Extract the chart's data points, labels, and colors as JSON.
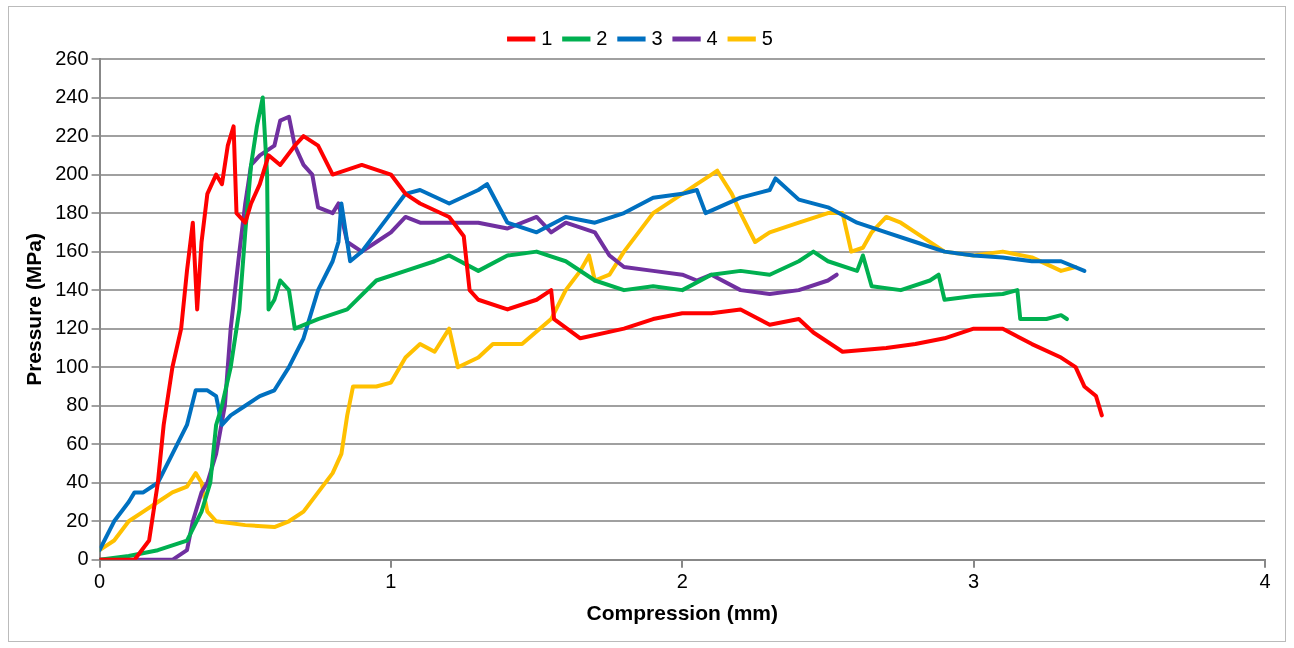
{
  "chart_data": {
    "type": "line",
    "xlabel": "Compression (mm)",
    "ylabel": "Pressure (MPa)",
    "xlim": [
      0,
      4
    ],
    "xticks": [
      0,
      1,
      2,
      3,
      4
    ],
    "ylim": [
      0,
      260
    ],
    "yticks": [
      0,
      20,
      40,
      60,
      80,
      100,
      120,
      140,
      160,
      180,
      200,
      220,
      240,
      260
    ],
    "grid": "y",
    "legend": "top",
    "marker": "none",
    "line_style": "solid",
    "series": [
      {
        "name": "1",
        "color": "#ff0000",
        "x": [
          0,
          0.12,
          0.17,
          0.2,
          0.22,
          0.25,
          0.28,
          0.3,
          0.32,
          0.335,
          0.35,
          0.37,
          0.4,
          0.42,
          0.44,
          0.46,
          0.47,
          0.5,
          0.52,
          0.55,
          0.58,
          0.62,
          0.67,
          0.7,
          0.75,
          0.8,
          0.9,
          1.0,
          1.05,
          1.1,
          1.2,
          1.25,
          1.27,
          1.3,
          1.4,
          1.5,
          1.55,
          1.56,
          1.65,
          1.8,
          1.9,
          2.0,
          2.1,
          2.2,
          2.3,
          2.4,
          2.45,
          2.55,
          2.7,
          2.8,
          2.9,
          3.0,
          3.1,
          3.2,
          3.3,
          3.35,
          3.38,
          3.42,
          3.44
        ],
        "values": [
          0,
          0,
          10,
          40,
          70,
          100,
          120,
          150,
          175,
          130,
          165,
          190,
          200,
          195,
          215,
          225,
          180,
          175,
          185,
          195,
          210,
          205,
          215,
          220,
          215,
          200,
          205,
          200,
          190,
          185,
          178,
          168,
          140,
          135,
          130,
          135,
          140,
          125,
          115,
          120,
          125,
          128,
          128,
          130,
          122,
          125,
          118,
          108,
          110,
          112,
          115,
          120,
          120,
          112,
          105,
          100,
          90,
          85,
          75
        ]
      },
      {
        "name": "2",
        "color": "#00b050",
        "x": [
          0,
          0.1,
          0.2,
          0.3,
          0.35,
          0.38,
          0.4,
          0.42,
          0.45,
          0.48,
          0.5,
          0.52,
          0.54,
          0.56,
          0.575,
          0.58,
          0.6,
          0.62,
          0.65,
          0.67,
          0.75,
          0.85,
          0.95,
          1.05,
          1.15,
          1.2,
          1.3,
          1.4,
          1.5,
          1.6,
          1.7,
          1.8,
          1.9,
          2.0,
          2.1,
          2.2,
          2.3,
          2.4,
          2.45,
          2.5,
          2.6,
          2.62,
          2.65,
          2.75,
          2.85,
          2.88,
          2.9,
          3.0,
          3.1,
          3.15,
          3.16,
          3.25,
          3.3,
          3.32
        ],
        "values": [
          0,
          2,
          5,
          10,
          25,
          40,
          70,
          80,
          100,
          130,
          170,
          205,
          225,
          240,
          200,
          130,
          135,
          145,
          140,
          120,
          125,
          130,
          145,
          150,
          155,
          158,
          150,
          158,
          160,
          155,
          145,
          140,
          142,
          140,
          148,
          150,
          148,
          155,
          160,
          155,
          150,
          158,
          142,
          140,
          145,
          148,
          135,
          137,
          138,
          140,
          125,
          125,
          127,
          125
        ]
      },
      {
        "name": "3",
        "color": "#0070c0",
        "x": [
          0,
          0.05,
          0.1,
          0.12,
          0.15,
          0.2,
          0.25,
          0.3,
          0.33,
          0.37,
          0.4,
          0.42,
          0.45,
          0.5,
          0.55,
          0.6,
          0.65,
          0.7,
          0.75,
          0.8,
          0.82,
          0.83,
          0.86,
          0.9,
          0.95,
          1.0,
          1.05,
          1.1,
          1.2,
          1.3,
          1.33,
          1.4,
          1.5,
          1.6,
          1.7,
          1.8,
          1.9,
          2.0,
          2.05,
          2.08,
          2.2,
          2.3,
          2.32,
          2.4,
          2.5,
          2.6,
          2.7,
          2.8,
          2.9,
          3.0,
          3.1,
          3.2,
          3.3,
          3.38
        ],
        "values": [
          5,
          20,
          30,
          35,
          35,
          40,
          55,
          70,
          88,
          88,
          85,
          70,
          75,
          80,
          85,
          88,
          100,
          115,
          140,
          155,
          165,
          185,
          155,
          160,
          170,
          180,
          190,
          192,
          185,
          192,
          195,
          175,
          170,
          178,
          175,
          180,
          188,
          190,
          192,
          180,
          188,
          192,
          198,
          187,
          183,
          175,
          170,
          165,
          160,
          158,
          157,
          155,
          155,
          150
        ]
      },
      {
        "name": "4",
        "color": "#7030a0",
        "x": [
          0,
          0.25,
          0.3,
          0.32,
          0.35,
          0.37,
          0.4,
          0.43,
          0.45,
          0.48,
          0.5,
          0.52,
          0.55,
          0.6,
          0.62,
          0.65,
          0.67,
          0.7,
          0.73,
          0.75,
          0.8,
          0.82,
          0.85,
          0.9,
          0.95,
          1.0,
          1.05,
          1.1,
          1.2,
          1.3,
          1.4,
          1.5,
          1.55,
          1.6,
          1.7,
          1.75,
          1.8,
          1.9,
          2.0,
          2.05,
          2.1,
          2.2,
          2.3,
          2.4,
          2.5,
          2.53
        ],
        "values": [
          0,
          0,
          5,
          20,
          35,
          40,
          55,
          80,
          120,
          160,
          185,
          205,
          210,
          215,
          228,
          230,
          215,
          205,
          200,
          183,
          180,
          185,
          165,
          160,
          165,
          170,
          178,
          175,
          175,
          175,
          172,
          178,
          170,
          175,
          170,
          158,
          152,
          150,
          148,
          145,
          148,
          140,
          138,
          140,
          145,
          148
        ]
      },
      {
        "name": "5",
        "color": "#ffc000",
        "x": [
          0,
          0.05,
          0.1,
          0.15,
          0.2,
          0.25,
          0.3,
          0.33,
          0.35,
          0.37,
          0.4,
          0.5,
          0.6,
          0.65,
          0.7,
          0.75,
          0.8,
          0.83,
          0.85,
          0.87,
          0.95,
          1.0,
          1.05,
          1.1,
          1.15,
          1.2,
          1.23,
          1.3,
          1.35,
          1.45,
          1.55,
          1.6,
          1.65,
          1.68,
          1.7,
          1.75,
          1.8,
          1.9,
          2.0,
          2.05,
          2.1,
          2.12,
          2.17,
          2.2,
          2.25,
          2.3,
          2.4,
          2.5,
          2.55,
          2.58,
          2.62,
          2.65,
          2.7,
          2.75,
          2.8,
          2.9,
          3.0,
          3.1,
          3.2,
          3.3,
          3.35
        ],
        "values": [
          5,
          10,
          20,
          25,
          30,
          35,
          38,
          45,
          40,
          25,
          20,
          18,
          17,
          20,
          25,
          35,
          45,
          55,
          75,
          90,
          90,
          92,
          105,
          112,
          108,
          120,
          100,
          105,
          112,
          112,
          125,
          140,
          150,
          158,
          145,
          148,
          160,
          180,
          190,
          195,
          200,
          202,
          190,
          180,
          165,
          170,
          175,
          180,
          180,
          160,
          162,
          170,
          178,
          175,
          170,
          160,
          158,
          160,
          157,
          150,
          152
        ]
      }
    ]
  }
}
